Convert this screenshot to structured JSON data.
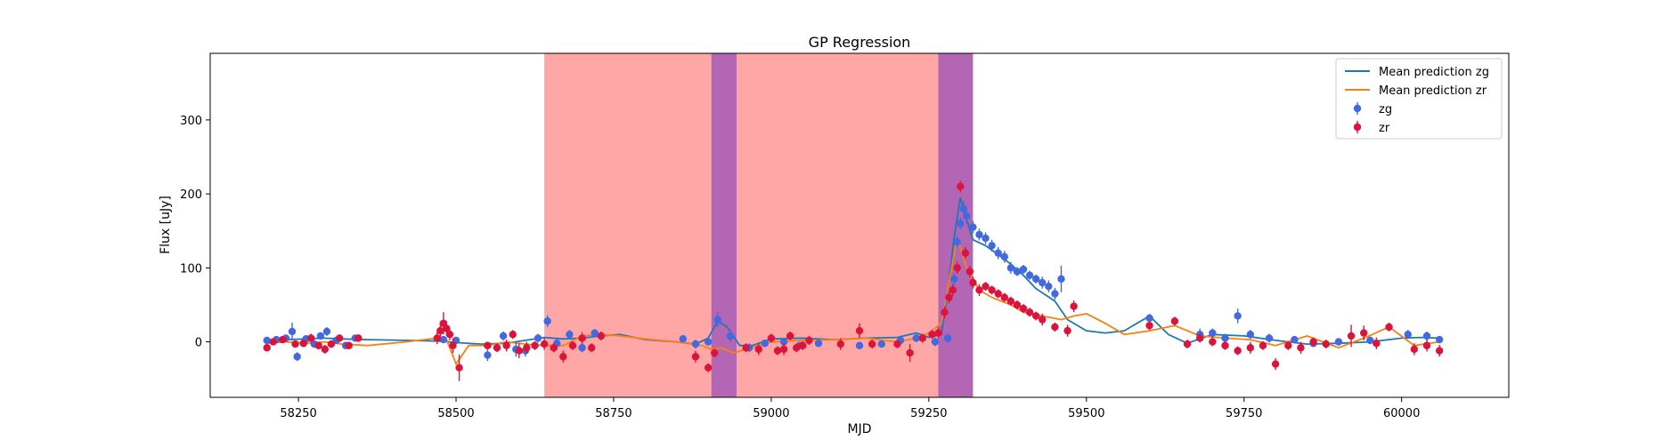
{
  "chart_data": {
    "type": "scatter",
    "title": "GP Regression",
    "xlabel": "MJD",
    "ylabel": "Flux [uJy]",
    "xlim": [
      58110,
      60170
    ],
    "ylim": [
      -75,
      390
    ],
    "xticks": [
      58250,
      58500,
      58750,
      59000,
      59250,
      59500,
      59750,
      60000
    ],
    "yticks": [
      0,
      100,
      200,
      300
    ],
    "grid": false,
    "legend": {
      "placement": "top-right",
      "entries": [
        "Mean prediction zg",
        "Mean prediction zr",
        "zg",
        "zr"
      ]
    },
    "shaded_regions": [
      {
        "x0": 58640,
        "x1": 58905,
        "color": "#ff0000",
        "alpha": 0.35
      },
      {
        "x0": 58905,
        "x1": 58945,
        "color": "#800080",
        "alpha": 0.6
      },
      {
        "x0": 58945,
        "x1": 59265,
        "color": "#ff0000",
        "alpha": 0.35
      },
      {
        "x0": 59265,
        "x1": 59320,
        "color": "#800080",
        "alpha": 0.6
      }
    ],
    "series": [
      {
        "name": "Mean prediction zg",
        "kind": "line",
        "color": "#1f77b4",
        "x": [
          58200,
          58230,
          58260,
          58290,
          58320,
          58360,
          58420,
          58470,
          58500,
          58540,
          58580,
          58610,
          58640,
          58670,
          58700,
          58730,
          58760,
          58800,
          58850,
          58880,
          58900,
          58915,
          58930,
          58950,
          58970,
          59000,
          59050,
          59100,
          59150,
          59200,
          59230,
          59250,
          59270,
          59280,
          59290,
          59300,
          59310,
          59320,
          59340,
          59360,
          59380,
          59400,
          59420,
          59450,
          59470,
          59500,
          59530,
          59560,
          59600,
          59630,
          59660,
          59700,
          59750,
          59800,
          59850,
          59900,
          59950,
          60000,
          60030,
          60060
        ],
        "y": [
          2,
          3,
          4,
          5,
          4,
          3,
          2,
          1,
          -1,
          -3,
          -2,
          2,
          6,
          4,
          5,
          8,
          10,
          3,
          0,
          -3,
          5,
          28,
          20,
          -5,
          -5,
          4,
          5,
          3,
          5,
          6,
          12,
          6,
          10,
          70,
          140,
          195,
          165,
          138,
          130,
          118,
          105,
          90,
          72,
          55,
          30,
          15,
          12,
          15,
          35,
          10,
          -2,
          10,
          8,
          2,
          -3,
          -2,
          0,
          5,
          6,
          5
        ]
      },
      {
        "name": "Mean prediction zr",
        "kind": "line",
        "color": "#ff7f0e",
        "x": [
          58200,
          58230,
          58260,
          58290,
          58320,
          58360,
          58420,
          58470,
          58485,
          58500,
          58520,
          58550,
          58580,
          58610,
          58640,
          58670,
          58700,
          58730,
          58760,
          58800,
          58850,
          58890,
          58905,
          58920,
          58940,
          58960,
          58980,
          59000,
          59050,
          59100,
          59150,
          59200,
          59230,
          59250,
          59270,
          59285,
          59295,
          59310,
          59330,
          59350,
          59380,
          59400,
          59430,
          59460,
          59480,
          59500,
          59530,
          59560,
          59600,
          59640,
          59680,
          59720,
          59760,
          59800,
          59850,
          59900,
          59940,
          59980,
          60020,
          60060
        ],
        "y": [
          -2,
          0,
          -2,
          0,
          -3,
          -5,
          0,
          5,
          3,
          -30,
          -5,
          -5,
          0,
          -3,
          -5,
          -5,
          8,
          10,
          8,
          4,
          0,
          -5,
          -10,
          -8,
          -15,
          -10,
          -5,
          0,
          2,
          3,
          5,
          0,
          5,
          12,
          25,
          95,
          140,
          100,
          70,
          60,
          50,
          40,
          35,
          30,
          35,
          38,
          25,
          10,
          15,
          22,
          8,
          5,
          3,
          -5,
          8,
          -8,
          5,
          20,
          -5,
          0
        ]
      },
      {
        "name": "zg",
        "kind": "points",
        "color": "#4169e1",
        "x": [
          58200,
          58215,
          58230,
          58240,
          58248,
          58262,
          58275,
          58285,
          58295,
          58310,
          58325,
          58340,
          58480,
          58500,
          58550,
          58575,
          58595,
          58610,
          58630,
          58645,
          58660,
          58680,
          58700,
          58720,
          58860,
          58880,
          58900,
          58915,
          58935,
          58965,
          58990,
          59020,
          59045,
          59075,
          59140,
          59175,
          59205,
          59230,
          59260,
          59280,
          59290,
          59295,
          59300,
          59305,
          59310,
          59320,
          59330,
          59340,
          59350,
          59360,
          59370,
          59380,
          59390,
          59400,
          59410,
          59420,
          59430,
          59440,
          59450,
          59460,
          59600,
          59680,
          59700,
          59720,
          59740,
          59760,
          59790,
          59830,
          59860,
          59900,
          59950,
          60010,
          60040,
          60060
        ],
        "y": [
          2,
          3,
          5,
          14,
          -20,
          4,
          -3,
          8,
          14,
          2,
          -5,
          5,
          3,
          2,
          -18,
          8,
          -10,
          -12,
          5,
          28,
          -2,
          10,
          -8,
          12,
          4,
          -3,
          0,
          30,
          8,
          -8,
          -2,
          0,
          -5,
          -2,
          -5,
          -3,
          2,
          5,
          0,
          5,
          85,
          135,
          160,
          180,
          170,
          155,
          145,
          140,
          130,
          120,
          115,
          100,
          95,
          98,
          90,
          85,
          80,
          75,
          65,
          85,
          32,
          10,
          12,
          5,
          35,
          10,
          5,
          3,
          -2,
          0,
          2,
          10,
          8,
          3
        ],
        "yerr": [
          3,
          4,
          5,
          12,
          6,
          4,
          5,
          5,
          6,
          4,
          4,
          4,
          3,
          3,
          8,
          6,
          10,
          8,
          6,
          8,
          8,
          6,
          6,
          5,
          4,
          6,
          5,
          10,
          8,
          6,
          5,
          5,
          5,
          5,
          4,
          4,
          5,
          5,
          6,
          6,
          8,
          8,
          8,
          10,
          10,
          8,
          8,
          8,
          8,
          8,
          8,
          8,
          6,
          6,
          6,
          6,
          8,
          8,
          8,
          18,
          6,
          8,
          6,
          6,
          10,
          6,
          6,
          5,
          5,
          5,
          5,
          6,
          6,
          5
        ]
      },
      {
        "name": "zr",
        "kind": "points",
        "color": "#dc143c",
        "x": [
          58200,
          58210,
          58225,
          58245,
          58258,
          58270,
          58282,
          58292,
          58302,
          58315,
          58330,
          58345,
          58470,
          58475,
          58480,
          58485,
          58490,
          58495,
          58505,
          58550,
          58565,
          58580,
          58590,
          58600,
          58612,
          58625,
          58640,
          58655,
          58670,
          58685,
          58700,
          58715,
          58730,
          58880,
          58900,
          58910,
          58960,
          58980,
          59000,
          59010,
          59020,
          59030,
          59040,
          59050,
          59060,
          59110,
          59140,
          59160,
          59200,
          59220,
          59240,
          59255,
          59265,
          59275,
          59282,
          59288,
          59295,
          59300,
          59308,
          59315,
          59320,
          59330,
          59340,
          59350,
          59360,
          59370,
          59380,
          59390,
          59400,
          59410,
          59420,
          59430,
          59450,
          59470,
          59480,
          59600,
          59640,
          59660,
          59680,
          59700,
          59720,
          59740,
          59760,
          59780,
          59800,
          59820,
          59840,
          59860,
          59880,
          59920,
          59940,
          59960,
          59980,
          60020,
          60040,
          60060
        ],
        "y": [
          -8,
          0,
          3,
          -3,
          -2,
          5,
          -5,
          -10,
          -3,
          5,
          -5,
          5,
          5,
          15,
          25,
          18,
          10,
          -5,
          -35,
          -5,
          -8,
          -5,
          10,
          -12,
          -8,
          -5,
          -3,
          -8,
          -20,
          -5,
          5,
          -8,
          8,
          -20,
          -35,
          -15,
          -8,
          -10,
          5,
          -12,
          -10,
          8,
          -8,
          -5,
          2,
          -3,
          15,
          -3,
          -3,
          -15,
          5,
          10,
          12,
          40,
          60,
          70,
          100,
          210,
          120,
          95,
          80,
          70,
          75,
          70,
          65,
          60,
          55,
          50,
          45,
          40,
          35,
          30,
          20,
          15,
          48,
          22,
          28,
          -3,
          5,
          0,
          -5,
          -12,
          -8,
          -5,
          -30,
          -5,
          -8,
          0,
          -3,
          8,
          12,
          -2,
          20,
          -10,
          -5,
          -12
        ],
        "yerr": [
          5,
          4,
          4,
          4,
          5,
          6,
          5,
          6,
          5,
          5,
          5,
          5,
          8,
          12,
          15,
          10,
          8,
          10,
          18,
          5,
          6,
          8,
          6,
          10,
          8,
          6,
          8,
          6,
          8,
          6,
          8,
          6,
          6,
          8,
          6,
          6,
          6,
          8,
          6,
          6,
          8,
          6,
          6,
          6,
          6,
          8,
          10,
          6,
          6,
          12,
          6,
          6,
          8,
          8,
          8,
          8,
          8,
          8,
          8,
          8,
          8,
          8,
          6,
          6,
          6,
          6,
          6,
          6,
          6,
          6,
          6,
          8,
          6,
          8,
          8,
          6,
          6,
          6,
          6,
          6,
          6,
          6,
          8,
          6,
          8,
          6,
          8,
          6,
          6,
          15,
          10,
          8,
          6,
          8,
          8,
          8
        ]
      }
    ]
  }
}
